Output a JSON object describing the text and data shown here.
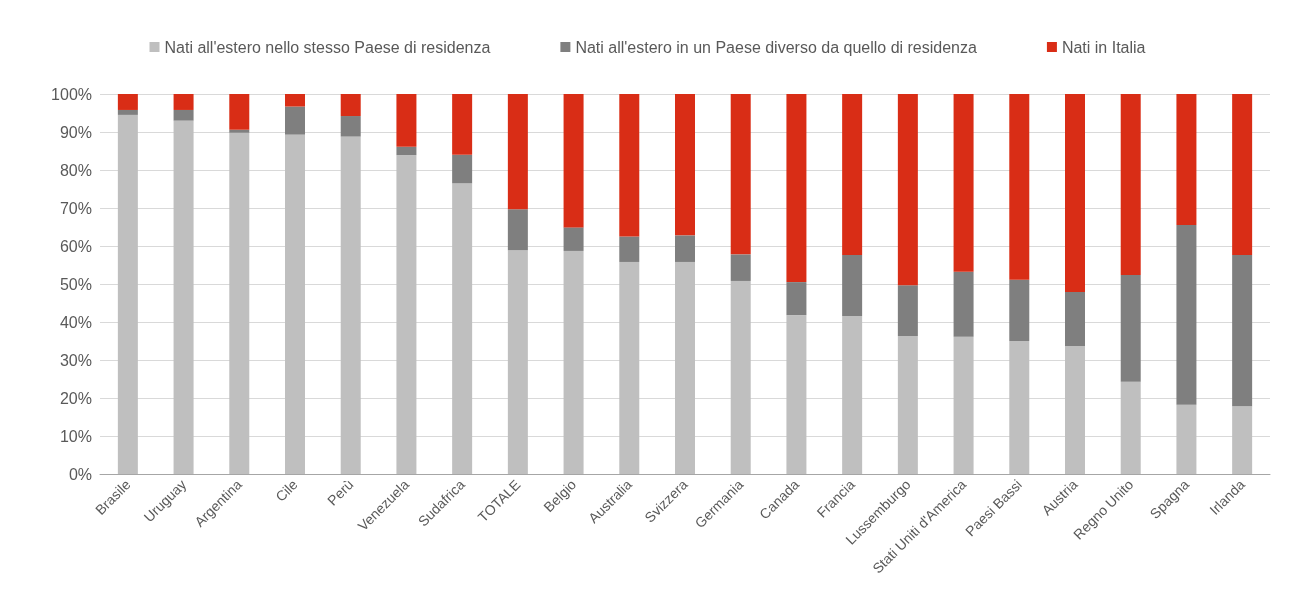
{
  "chart_data": {
    "type": "bar",
    "stacked": true,
    "legend": "top",
    "grid": "y",
    "categories": [
      "Brasile",
      "Uruguay",
      "Argentina",
      "Cile",
      "Perù",
      "Venezuela",
      "Sudafrica",
      "TOTALE",
      "Belgio",
      "Australia",
      "Svizzera",
      "Germania",
      "Canada",
      "Francia",
      "Lussemburgo",
      "Stati Uniti d'America",
      "Paesi Bassi",
      "Austria",
      "Regno Unito",
      "Spagna",
      "Irlanda"
    ],
    "series": [
      {
        "name": "Nati all'estero nello stesso Paese di residenza",
        "color": "#bfbfbf",
        "values": [
          94.5,
          93,
          89.8,
          89.3,
          88.8,
          83.9,
          76.5,
          58.9,
          58.7,
          55.8,
          55.8,
          50.8,
          41.8,
          41.6,
          36.3,
          36.1,
          35,
          33.7,
          24.3,
          18.2,
          17.8
        ]
      },
      {
        "name": "Nati all'estero in un Paese diverso da quello di residenza",
        "color": "#7f7f7f",
        "values": [
          1.3,
          2.8,
          0.8,
          7.4,
          5.4,
          2.2,
          7.5,
          10.8,
          6.2,
          6.7,
          7,
          7,
          8.7,
          16,
          13.4,
          17.1,
          16.1,
          14.2,
          28.1,
          47.3,
          39.8
        ]
      },
      {
        "name": "Nati in Italia",
        "color": "#d92d16",
        "values": [
          4.2,
          4.2,
          9.4,
          3.3,
          5.8,
          13.9,
          16,
          30.3,
          35.1,
          37.5,
          37.2,
          42.2,
          49.5,
          42.4,
          50.3,
          46.8,
          48.9,
          52.1,
          47.6,
          34.5,
          42.4
        ]
      }
    ],
    "ylim": [
      0,
      100
    ],
    "yticks": [
      {
        "value": 0,
        "label": "0%"
      },
      {
        "value": 10,
        "label": "10%"
      },
      {
        "value": 20,
        "label": "20%"
      },
      {
        "value": 30,
        "label": "30%"
      },
      {
        "value": 40,
        "label": "40%"
      },
      {
        "value": 50,
        "label": "50%"
      },
      {
        "value": 60,
        "label": "60%"
      },
      {
        "value": 70,
        "label": "70%"
      },
      {
        "value": 80,
        "label": "80%"
      },
      {
        "value": 90,
        "label": "90%"
      },
      {
        "value": 100,
        "label": "100%"
      }
    ]
  }
}
